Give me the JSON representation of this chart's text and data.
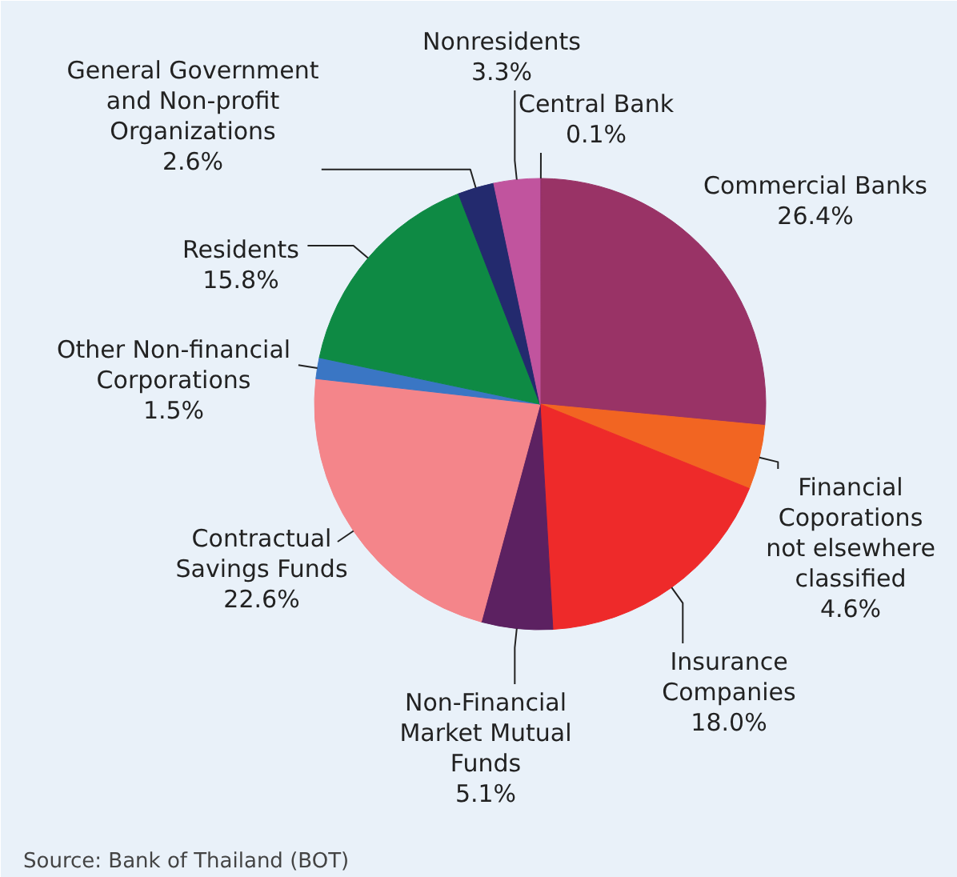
{
  "chart_data": {
    "type": "pie",
    "categories": [
      "Central Bank",
      "Commercial Banks",
      "Financial\nCoporations\nnot elsewhere\nclassified",
      "Insurance\nCompanies",
      "Non-Financial\nMarket Mutual\nFunds",
      "Contractual\nSavings Funds",
      "Other Non-financial\nCorporations",
      "Residents",
      "General Government\nand Non-profit\nOrganizations",
      "Nonresidents"
    ],
    "values": [
      0.1,
      26.4,
      4.6,
      18.0,
      5.1,
      22.6,
      1.5,
      15.8,
      2.6,
      3.3
    ],
    "colors": [
      "#7a1f5c",
      "#993366",
      "#f26522",
      "#ee2a2a",
      "#5c2161",
      "#f4858a",
      "#3a76c4",
      "#0e8a44",
      "#232a6e",
      "#c1549e"
    ],
    "value_labels": [
      "0.1%",
      "26.4%",
      "4.6%",
      "18.0%",
      "5.1%",
      "22.6%",
      "1.5%",
      "15.8%",
      "2.6%",
      "3.3%"
    ],
    "annotations": [
      "Source: Bank of Thailand (BOT)"
    ]
  }
}
